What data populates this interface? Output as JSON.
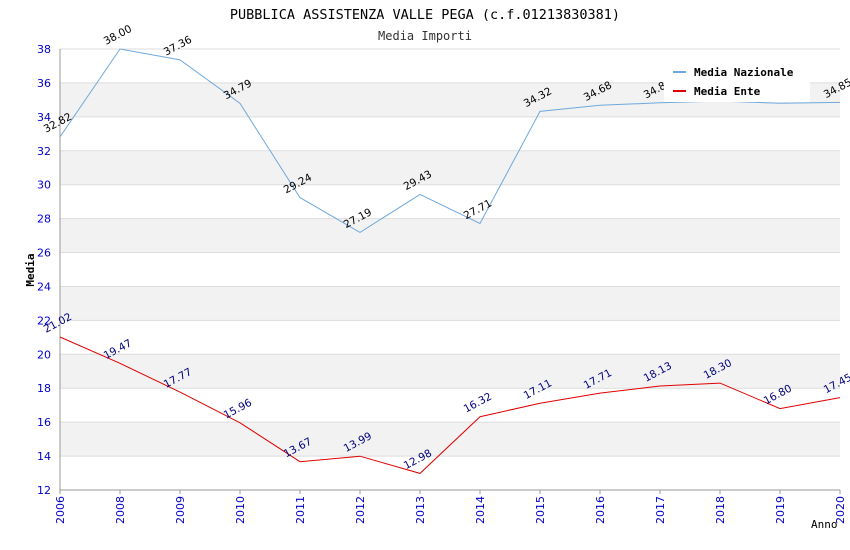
{
  "chart_data": {
    "type": "line",
    "title": "PUBBLICA ASSISTENZA VALLE PEGA (c.f.01213830381)",
    "subtitle": "Media Importi",
    "xlabel": "Anno",
    "ylabel": "Media",
    "ylim": [
      12,
      38
    ],
    "y_ticks": [
      "12",
      "14",
      "16",
      "18",
      "20",
      "22",
      "24",
      "26",
      "28",
      "30",
      "32",
      "34",
      "36",
      "38"
    ],
    "categories": [
      "2006",
      "2008",
      "2009",
      "2010",
      "2011",
      "2012",
      "2013",
      "2014",
      "2015",
      "2016",
      "2017",
      "2018",
      "2019",
      "2020"
    ],
    "series": [
      {
        "name": "Media Nazionale",
        "color": "#6fa8dc",
        "label_color": "#000000",
        "values": [
          32.82,
          38.0,
          37.36,
          34.79,
          29.24,
          27.19,
          29.43,
          27.71,
          34.32,
          34.68,
          34.83,
          34.93,
          34.8,
          34.85
        ],
        "labels": [
          "32.82",
          "38.00",
          "37.36",
          "34.79",
          "29.24",
          "27.19",
          "29.43",
          "27.71",
          "34.32",
          "34.68",
          "34.83",
          "",
          "",
          "34.85"
        ]
      },
      {
        "name": "Media Ente",
        "color": "#e00000",
        "label_color": "#000080",
        "values": [
          21.02,
          19.47,
          17.77,
          15.96,
          13.67,
          13.99,
          12.98,
          16.32,
          17.11,
          17.71,
          18.13,
          18.3,
          16.8,
          17.45
        ],
        "labels": [
          "21.02",
          "19.47",
          "17.77",
          "15.96",
          "13.67",
          "13.99",
          "12.98",
          "16.32",
          "17.11",
          "17.71",
          "18.13",
          "18.30",
          "16.80",
          "17.45"
        ]
      }
    ],
    "legend_position": "top-right",
    "grid": true,
    "colors": {
      "axis_text": "#0000cc",
      "band": "#f2f2f2",
      "grid": "#dddddd"
    }
  }
}
